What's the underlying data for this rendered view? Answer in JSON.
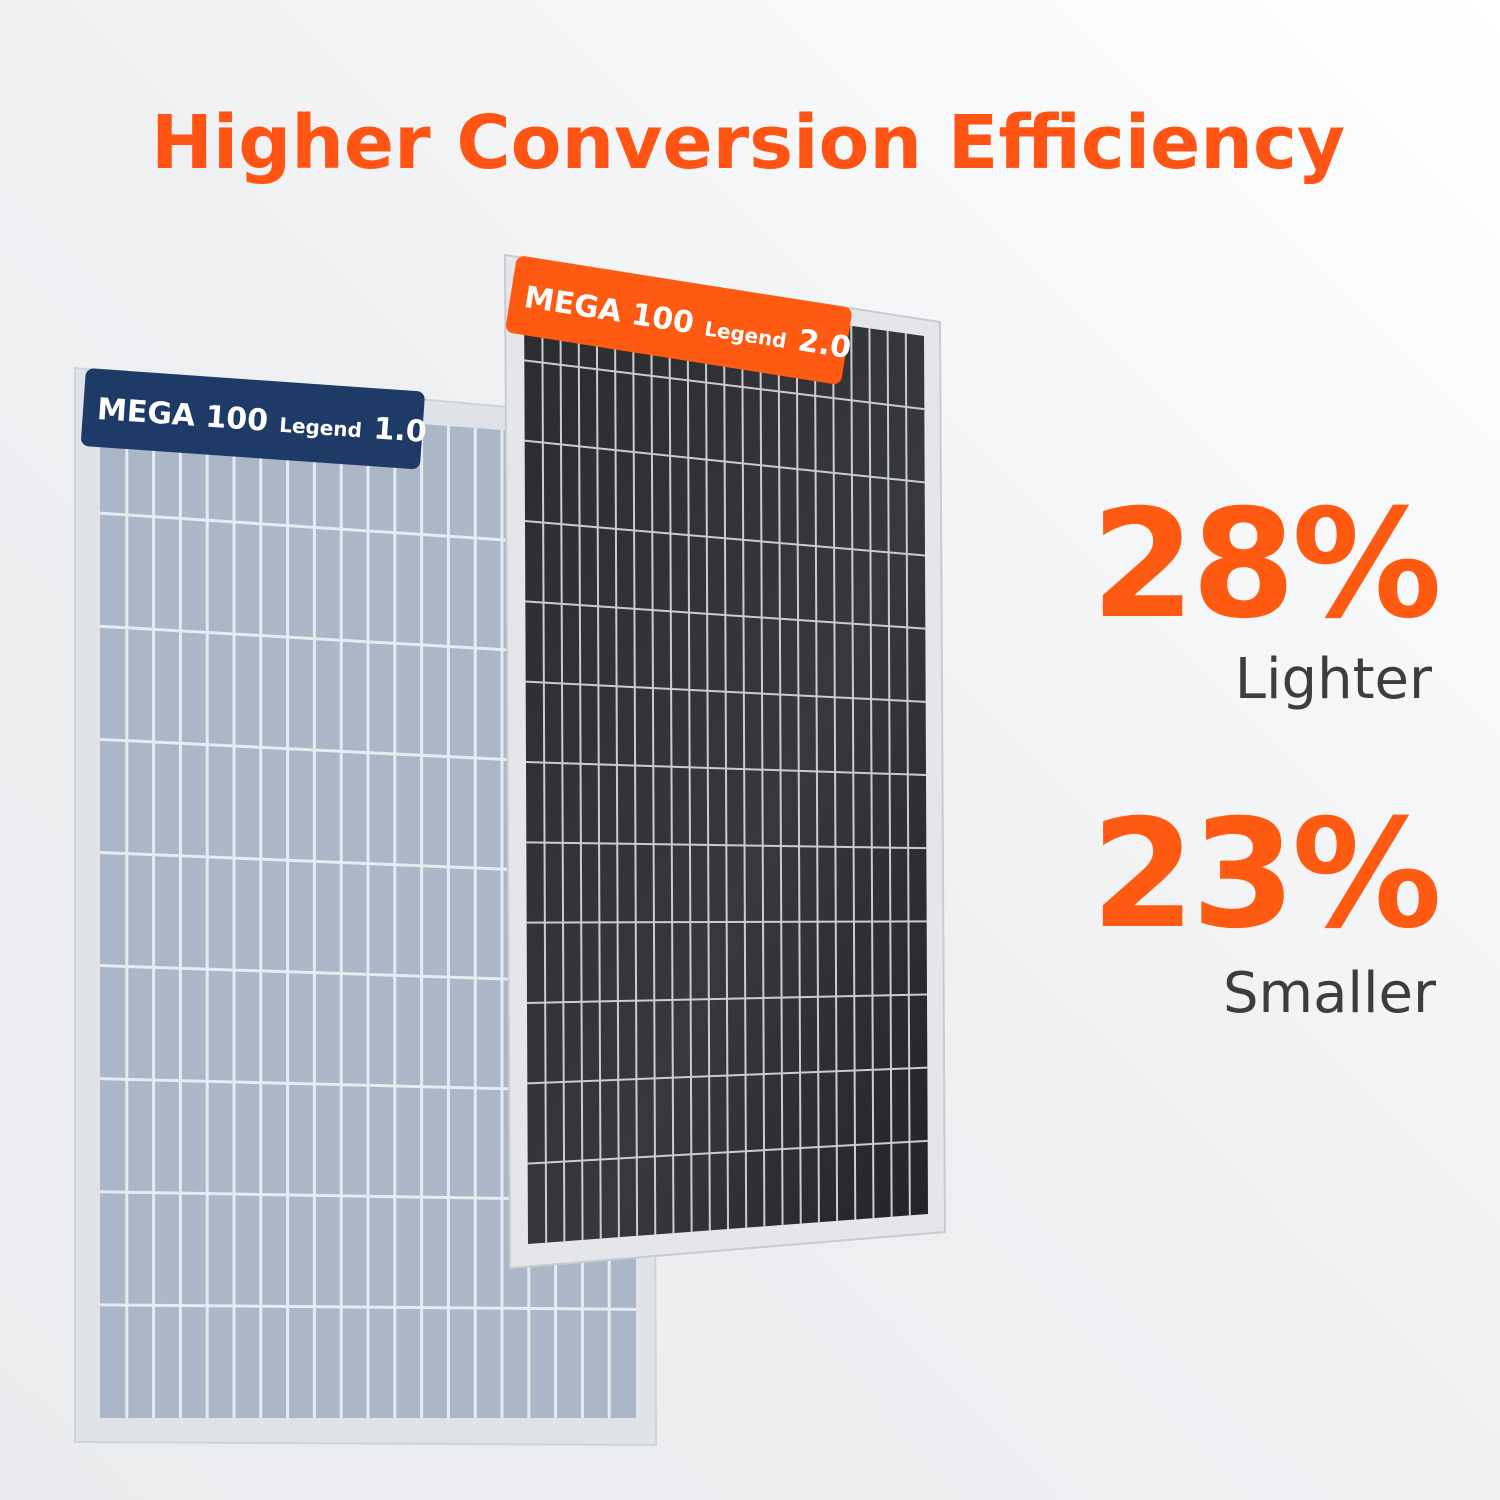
{
  "title": "Higher Conversion Efficiency",
  "panels": [
    {
      "name": "MEGA 100",
      "sub": "Legend",
      "version": "1.0"
    },
    {
      "name": "MEGA 100",
      "sub": "Legend",
      "version": "2.0"
    }
  ],
  "stats": [
    {
      "value": "28%",
      "label": "Lighter"
    },
    {
      "value": "23%",
      "label": "Smaller"
    }
  ]
}
